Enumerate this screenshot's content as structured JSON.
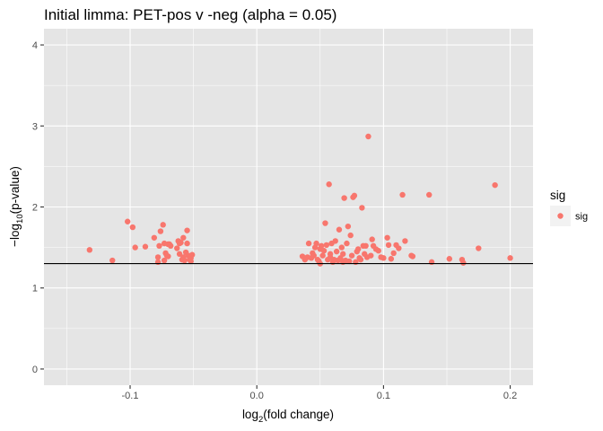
{
  "chart_data": {
    "type": "scatter",
    "title": "Initial limma: PET-pos v -neg (alpha = 0.05)",
    "xlabel": {
      "prefix": "log",
      "sub": "2",
      "suffix": "(fold change)"
    },
    "ylabel": {
      "prefix": "−log",
      "sub": "10",
      "suffix": "(p-value)"
    },
    "xlim": [
      -0.168,
      0.218
    ],
    "ylim": [
      -0.2,
      4.2
    ],
    "x_ticks": [
      -0.1,
      0.0,
      0.1,
      0.2
    ],
    "x_tick_labels": [
      "-0.1",
      "0.0",
      "0.1",
      "0.2"
    ],
    "x_minor_ticks": [
      -0.15,
      -0.05,
      0.05,
      0.15
    ],
    "y_ticks": [
      0,
      1,
      2,
      3,
      4
    ],
    "y_tick_labels": [
      "0",
      "1",
      "2",
      "3",
      "4"
    ],
    "y_minor_ticks": [
      0.5,
      1.5,
      2.5,
      3.5
    ],
    "hline": 1.301,
    "grid": true,
    "panel_background": "#e5e5e5",
    "grid_color": "#ffffff",
    "legend": {
      "title": "sig",
      "position": "right",
      "entries": [
        {
          "label": "sig",
          "color": "#f8766d"
        }
      ]
    },
    "series": [
      {
        "name": "sig",
        "color": "#f8766d",
        "points": [
          [
            -0.132,
            1.47
          ],
          [
            -0.114,
            1.34
          ],
          [
            -0.102,
            1.82
          ],
          [
            -0.098,
            1.75
          ],
          [
            -0.096,
            1.5
          ],
          [
            -0.088,
            1.51
          ],
          [
            -0.081,
            1.62
          ],
          [
            -0.078,
            1.32
          ],
          [
            -0.078,
            1.38
          ],
          [
            -0.077,
            1.52
          ],
          [
            -0.076,
            1.7
          ],
          [
            -0.074,
            1.78
          ],
          [
            -0.073,
            1.55
          ],
          [
            -0.073,
            1.34
          ],
          [
            -0.072,
            1.43
          ],
          [
            -0.071,
            1.4
          ],
          [
            -0.07,
            1.39
          ],
          [
            -0.07,
            1.54
          ],
          [
            -0.069,
            1.54
          ],
          [
            -0.068,
            1.52
          ],
          [
            -0.063,
            1.49
          ],
          [
            -0.062,
            1.58
          ],
          [
            -0.061,
            1.55
          ],
          [
            -0.061,
            1.42
          ],
          [
            -0.06,
            1.56
          ],
          [
            -0.059,
            1.35
          ],
          [
            -0.058,
            1.62
          ],
          [
            -0.058,
            1.38
          ],
          [
            -0.057,
            1.34
          ],
          [
            -0.056,
            1.44
          ],
          [
            -0.055,
            1.71
          ],
          [
            -0.055,
            1.55
          ],
          [
            -0.054,
            1.4
          ],
          [
            -0.053,
            1.35
          ],
          [
            -0.052,
            1.33
          ],
          [
            -0.052,
            1.37
          ],
          [
            -0.051,
            1.41
          ],
          [
            0.036,
            1.39
          ],
          [
            0.038,
            1.35
          ],
          [
            0.04,
            1.38
          ],
          [
            0.041,
            1.55
          ],
          [
            0.043,
            1.37
          ],
          [
            0.044,
            1.43
          ],
          [
            0.045,
            1.4
          ],
          [
            0.046,
            1.5
          ],
          [
            0.047,
            1.55
          ],
          [
            0.048,
            1.35
          ],
          [
            0.049,
            1.33
          ],
          [
            0.05,
            1.3
          ],
          [
            0.05,
            1.48
          ],
          [
            0.051,
            1.52
          ],
          [
            0.052,
            1.4
          ],
          [
            0.053,
            1.46
          ],
          [
            0.054,
            1.8
          ],
          [
            0.055,
            1.53
          ],
          [
            0.056,
            1.35
          ],
          [
            0.057,
            2.28
          ],
          [
            0.058,
            1.42
          ],
          [
            0.058,
            1.38
          ],
          [
            0.059,
            1.55
          ],
          [
            0.06,
            1.32
          ],
          [
            0.061,
            1.35
          ],
          [
            0.062,
            1.58
          ],
          [
            0.063,
            1.45
          ],
          [
            0.064,
            1.34
          ],
          [
            0.065,
            1.72
          ],
          [
            0.066,
            1.37
          ],
          [
            0.067,
            1.5
          ],
          [
            0.068,
            1.32
          ],
          [
            0.068,
            1.42
          ],
          [
            0.069,
            2.11
          ],
          [
            0.07,
            1.34
          ],
          [
            0.071,
            1.55
          ],
          [
            0.072,
            1.76
          ],
          [
            0.073,
            1.33
          ],
          [
            0.074,
            1.65
          ],
          [
            0.075,
            1.4
          ],
          [
            0.076,
            2.12
          ],
          [
            0.077,
            2.14
          ],
          [
            0.078,
            1.32
          ],
          [
            0.079,
            1.45
          ],
          [
            0.08,
            1.48
          ],
          [
            0.081,
            1.37
          ],
          [
            0.082,
            1.35
          ],
          [
            0.083,
            1.99
          ],
          [
            0.084,
            1.52
          ],
          [
            0.085,
            1.42
          ],
          [
            0.086,
            1.52
          ],
          [
            0.087,
            1.38
          ],
          [
            0.088,
            2.87
          ],
          [
            0.09,
            1.4
          ],
          [
            0.091,
            1.6
          ],
          [
            0.092,
            1.52
          ],
          [
            0.094,
            1.48
          ],
          [
            0.096,
            1.46
          ],
          [
            0.098,
            1.38
          ],
          [
            0.1,
            1.37
          ],
          [
            0.103,
            1.62
          ],
          [
            0.104,
            1.53
          ],
          [
            0.106,
            1.36
          ],
          [
            0.108,
            1.43
          ],
          [
            0.11,
            1.53
          ],
          [
            0.112,
            1.49
          ],
          [
            0.115,
            2.15
          ],
          [
            0.117,
            1.58
          ],
          [
            0.122,
            1.4
          ],
          [
            0.123,
            1.39
          ],
          [
            0.136,
            2.15
          ],
          [
            0.138,
            1.32
          ],
          [
            0.152,
            1.36
          ],
          [
            0.162,
            1.35
          ],
          [
            0.163,
            1.31
          ],
          [
            0.175,
            1.49
          ],
          [
            0.188,
            2.27
          ],
          [
            0.2,
            1.37
          ]
        ]
      }
    ]
  }
}
